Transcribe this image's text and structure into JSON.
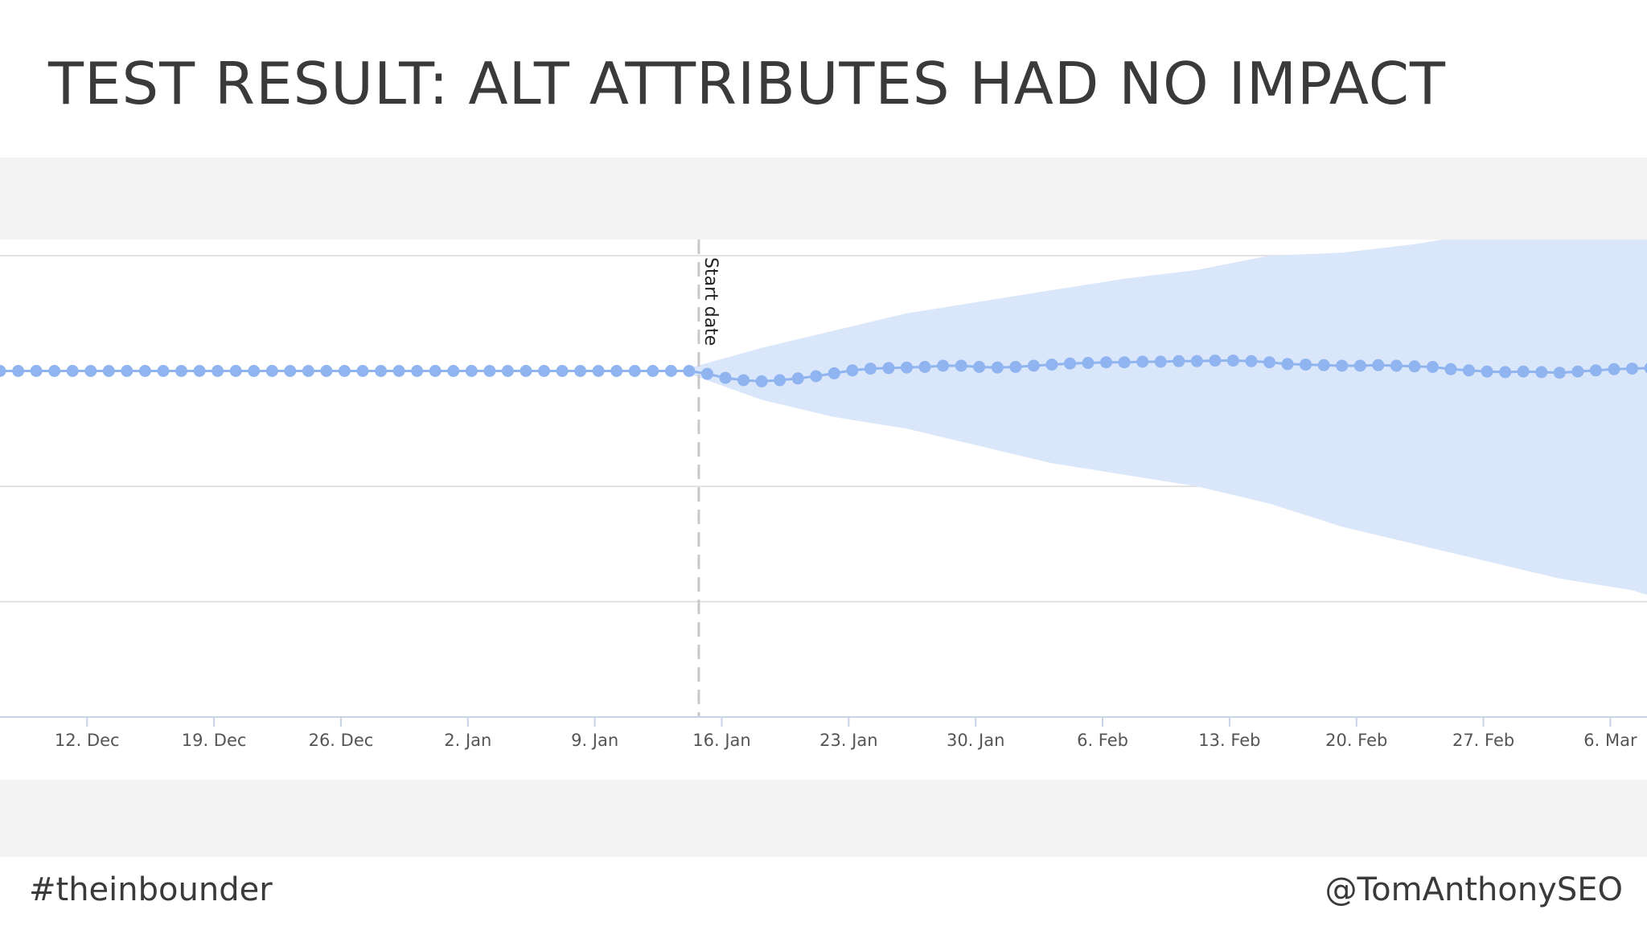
{
  "slide": {
    "title": "TEST RESULT: ALT ATTRIBUTES HAD NO IMPACT",
    "footer_left": "#theinbounder",
    "footer_right": "@TomAnthonySEO"
  },
  "chart_data": {
    "type": "line",
    "title": "",
    "xlabel": "",
    "ylabel": "",
    "grid": true,
    "legend": "none",
    "colors": {
      "series": "#8fb4ef",
      "band": "#dae6fa",
      "grid": "#d8d8d8",
      "start_line": "#c8c8c8"
    },
    "x_ticks": [
      "12. Dec",
      "19. Dec",
      "26. Dec",
      "2. Jan",
      "9. Jan",
      "16. Jan",
      "23. Jan",
      "30. Jan",
      "6. Feb",
      "13. Feb",
      "20. Feb",
      "27. Feb",
      "6. Mar"
    ],
    "annotation": {
      "label": "Start date",
      "x_day": 38
    },
    "ylim": [
      -0.6,
      0.2
    ],
    "series": [
      {
        "values": [
          0,
          0,
          0,
          0,
          0,
          0,
          0,
          0,
          0,
          0,
          0,
          0,
          0,
          0,
          0,
          0,
          0,
          0,
          0,
          0,
          0,
          0,
          0,
          0,
          0,
          0,
          0,
          0,
          0,
          0,
          0,
          0,
          0,
          0,
          0,
          0,
          0,
          0,
          0,
          -0.005,
          -0.012,
          -0.016,
          -0.018,
          -0.016,
          -0.013,
          -0.009,
          -0.004,
          0.001,
          0.004,
          0.005,
          0.006,
          0.007,
          0.009,
          0.009,
          0.007,
          0.006,
          0.007,
          0.009,
          0.011,
          0.013,
          0.014,
          0.015,
          0.015,
          0.016,
          0.016,
          0.017,
          0.017,
          0.018,
          0.018,
          0.017,
          0.015,
          0.012,
          0.011,
          0.01,
          0.009,
          0.009,
          0.01,
          0.009,
          0.008,
          0.007,
          0.003,
          0.001,
          -0.001,
          -0.002,
          -0.001,
          -0.002,
          -0.003,
          -0.001,
          0.001,
          0.003,
          0.004,
          0.005,
          0.004,
          0.001,
          -0.004,
          -0.008,
          -0.014,
          -0.02,
          -0.022
        ]
      }
    ],
    "band": {
      "x_day": [
        38,
        42,
        46,
        50,
        54,
        58,
        62,
        66,
        70,
        74,
        78,
        82,
        86,
        90,
        94,
        98,
        99
      ],
      "upper": [
        0.005,
        0.04,
        0.07,
        0.1,
        0.12,
        0.14,
        0.16,
        0.175,
        0.2,
        0.205,
        0.22,
        0.24,
        0.26,
        0.28,
        0.3,
        0.31,
        0.31
      ],
      "lower": [
        -0.005,
        -0.05,
        -0.08,
        -0.1,
        -0.13,
        -0.16,
        -0.18,
        -0.2,
        -0.23,
        -0.27,
        -0.3,
        -0.33,
        -0.36,
        -0.38,
        -0.42,
        -0.45,
        -0.47
      ]
    }
  }
}
